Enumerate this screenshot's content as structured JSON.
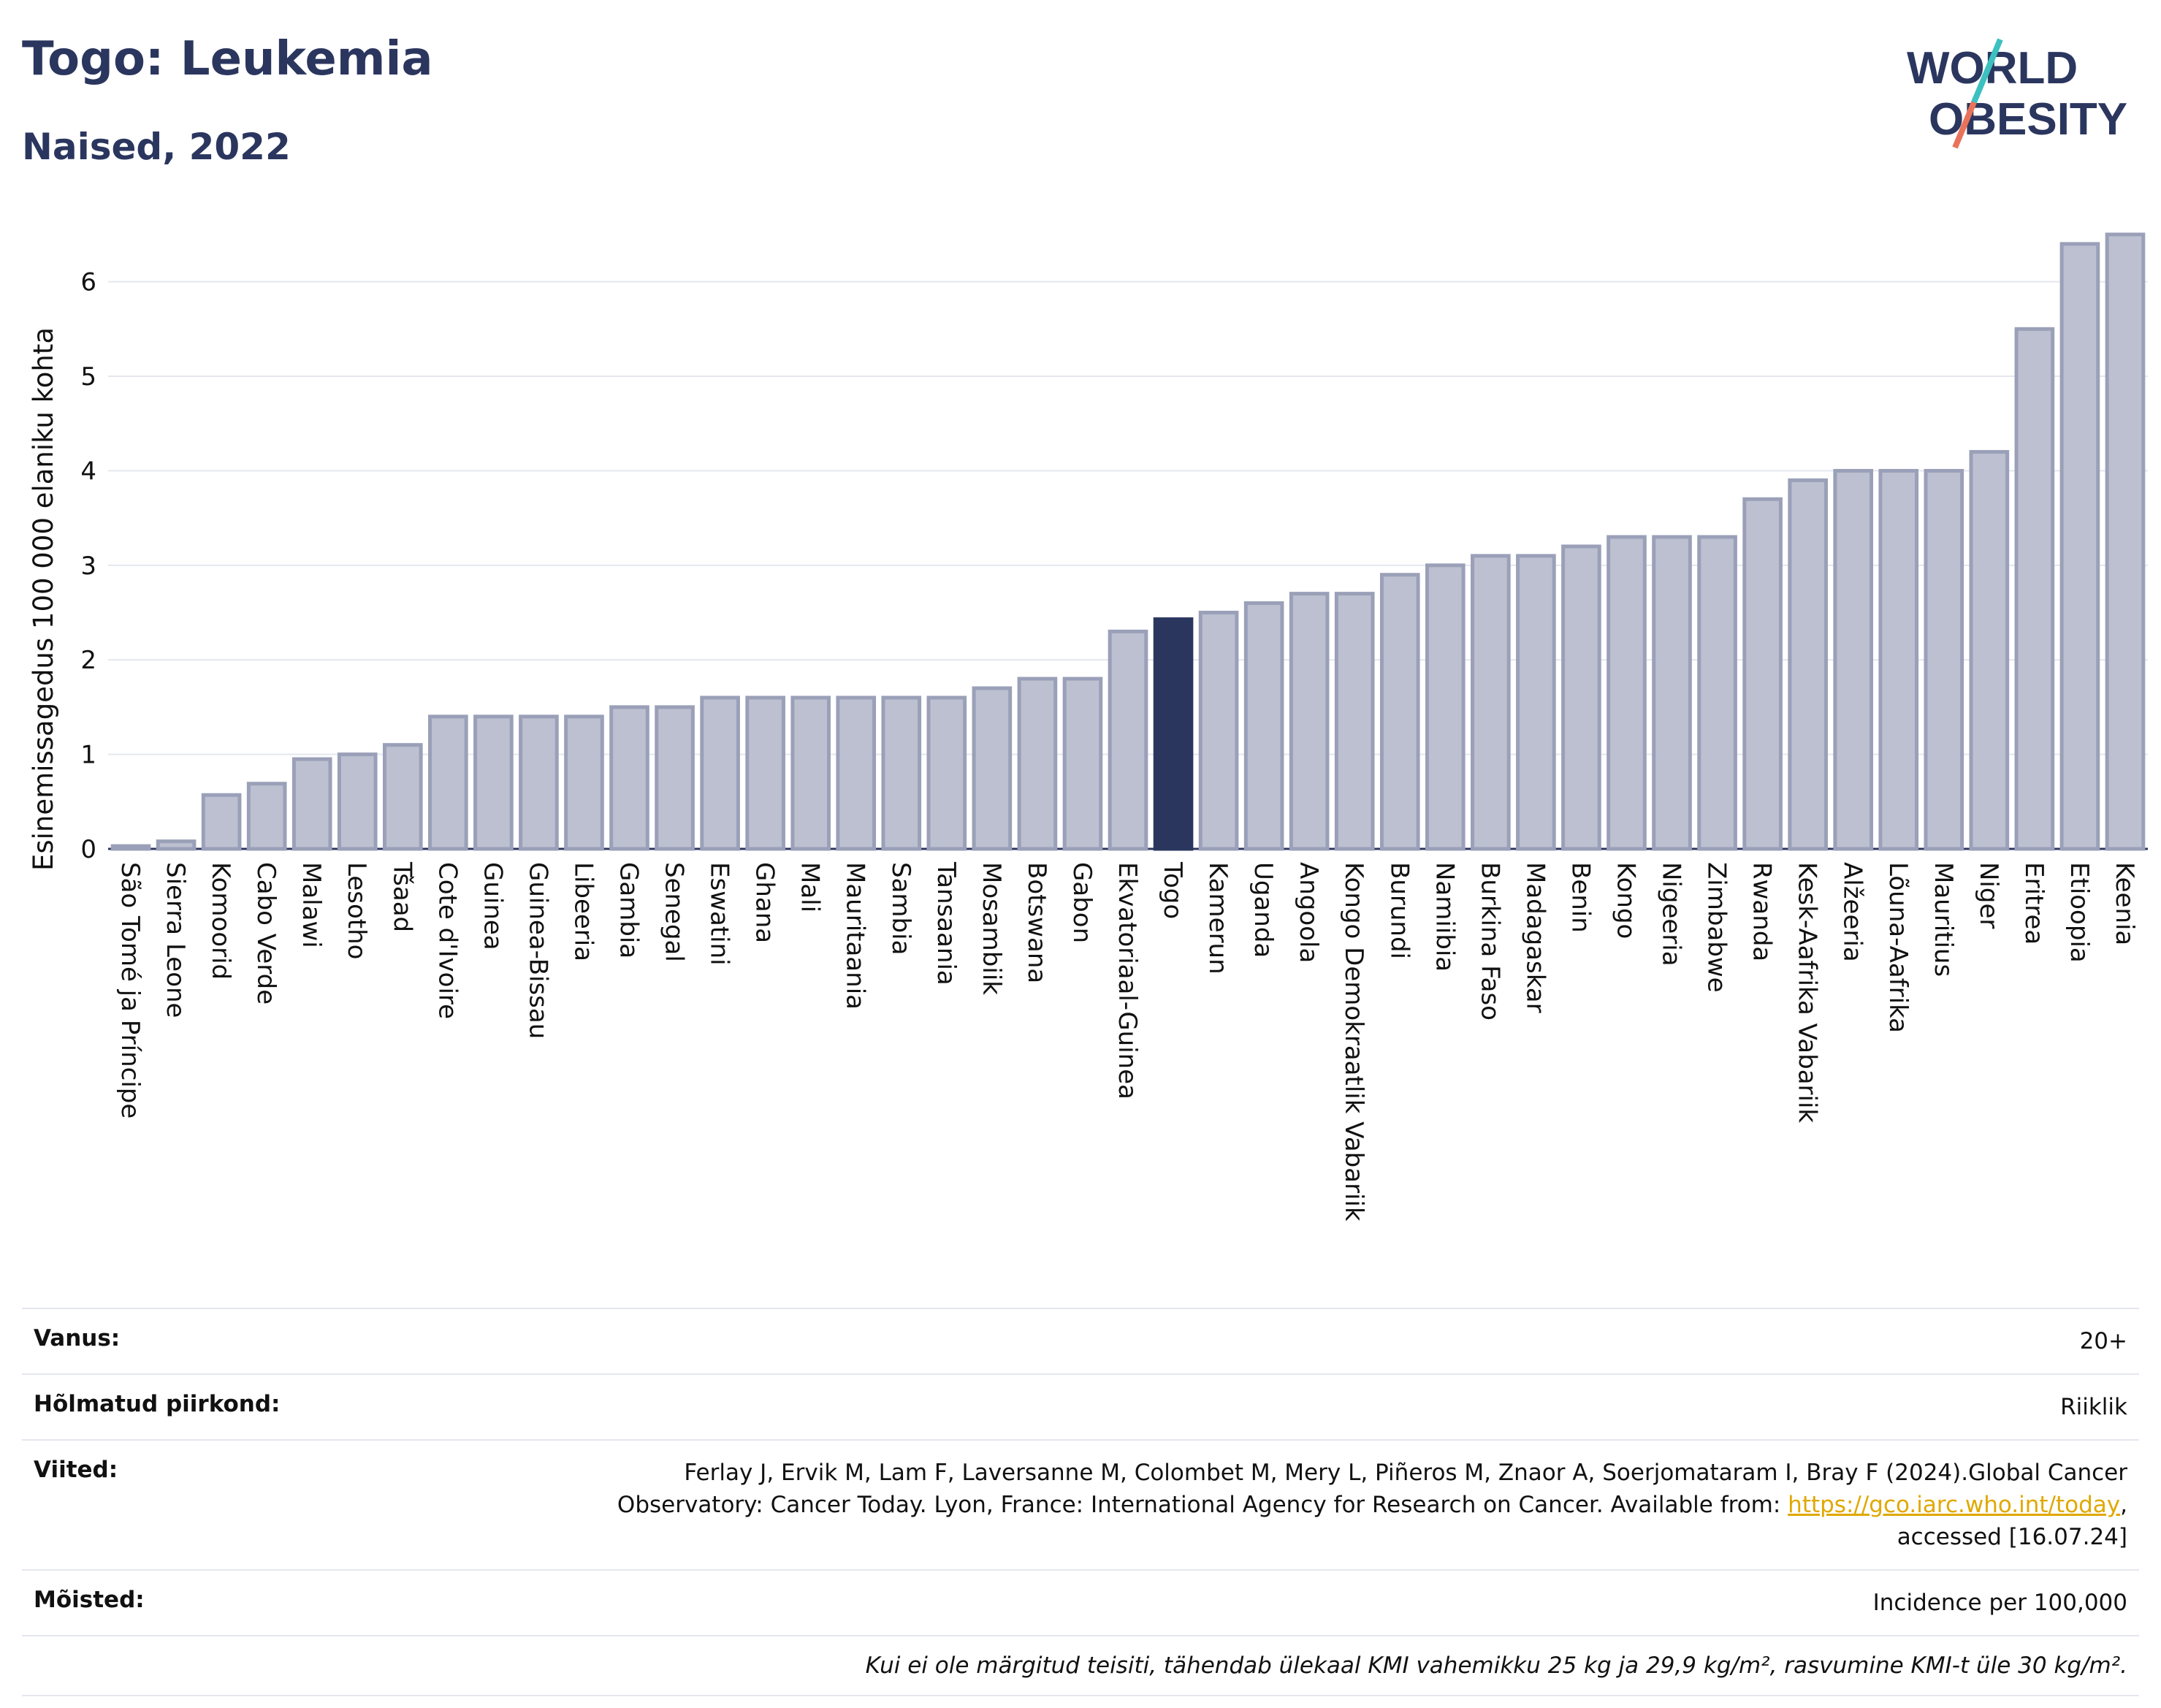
{
  "header": {
    "title": "Togo: Leukemia",
    "subtitle": "Naised, 2022",
    "logo_line1": "WORLD",
    "logo_line2": "OBESITY"
  },
  "colors": {
    "bar": "#bcc0d0",
    "bar_border": "#9aa0b8",
    "highlight": "#2b365f",
    "text": "#2b365f",
    "grid": "#e4e7ef",
    "logo_teal": "#3cc0c0",
    "logo_coral": "#e8735a"
  },
  "chart_data": {
    "type": "bar",
    "ylabel": "Esinemissagedus 100 000 elaniku kohta",
    "xlabel": "",
    "ylim": [
      0,
      6.6
    ],
    "yticks": [
      0,
      1,
      2,
      3,
      4,
      5,
      6
    ],
    "highlight": "Togo",
    "categories": [
      "São Tomé ja Príncipe",
      "Sierra Leone",
      "Komoorid",
      "Cabo Verde",
      "Malawi",
      "Lesotho",
      "Tšaad",
      "Cote d'Ivoire",
      "Guinea",
      "Guinea-Bissau",
      "Libeeria",
      "Gambia",
      "Senegal",
      "Eswatini",
      "Ghana",
      "Mali",
      "Mauritaania",
      "Sambia",
      "Tansaania",
      "Mosambiik",
      "Botswana",
      "Gabon",
      "Ekvatoriaal-Guinea",
      "Togo",
      "Kamerun",
      "Uganda",
      "Angoola",
      "Kongo Demokraatlik Vabariik",
      "Burundi",
      "Namiibia",
      "Burkina Faso",
      "Madagaskar",
      "Benin",
      "Kongo",
      "Nigeeria",
      "Zimbabwe",
      "Rwanda",
      "Kesk-Aafrika Vabariik",
      "Alžeeria",
      "Lõuna-Aafrika",
      "Mauritius",
      "Niger",
      "Eritrea",
      "Etioopia",
      "Keenia"
    ],
    "values": [
      0.03,
      0.08,
      0.57,
      0.69,
      0.95,
      1.0,
      1.1,
      1.4,
      1.4,
      1.4,
      1.4,
      1.5,
      1.5,
      1.6,
      1.6,
      1.6,
      1.6,
      1.6,
      1.6,
      1.7,
      1.8,
      1.8,
      2.3,
      2.43,
      2.5,
      2.6,
      2.7,
      2.7,
      2.9,
      3.0,
      3.1,
      3.1,
      3.2,
      3.3,
      3.3,
      3.3,
      3.7,
      3.9,
      4.0,
      4.0,
      4.0,
      4.2,
      5.5,
      6.4,
      6.5
    ]
  },
  "info": {
    "age_label": "Vanus:",
    "age_value": "20+",
    "region_label": "Hõlmatud piirkond:",
    "region_value": "Riiklik",
    "refs_label": "Viited:",
    "refs_text1": "Ferlay J, Ervik M, Lam F, Laversanne M, Colombet M, Mery L, Piñeros M, Znaor A, Soerjomataram I, Bray F (2024).Global Cancer Observatory: Cancer Today. Lyon, France: International Agency for Research on Cancer. Available from: ",
    "refs_link": "https://gco.iarc.who.int/today",
    "refs_text2": ", accessed [16.07.24]",
    "defs_label": "Mõisted:",
    "defs_value": "Incidence per 100,000",
    "footnote": "Kui ei ole märgitud teisiti, tähendab ülekaal KMI vahemikku 25 kg ja 29,9 kg/m², rasvumine KMI-t üle 30 kg/m²."
  }
}
